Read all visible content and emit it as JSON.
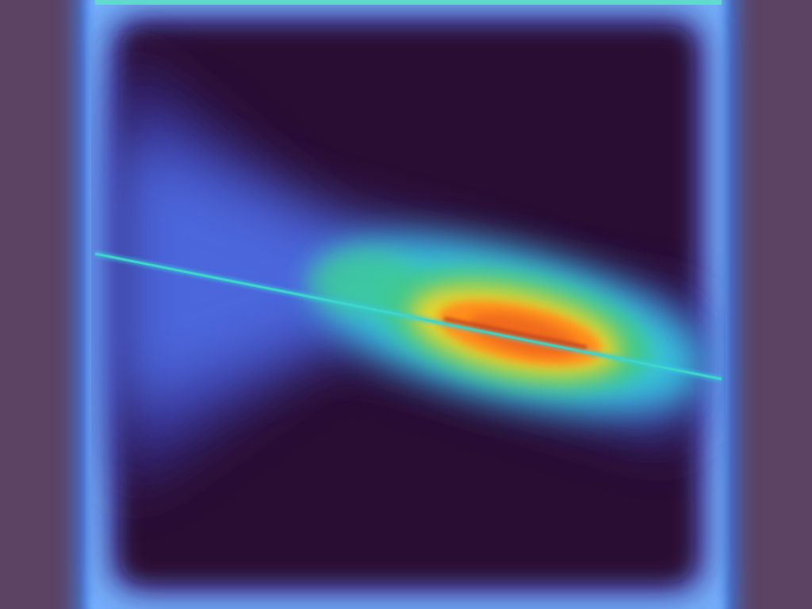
{
  "overlay": {
    "type": "attention-heatmap",
    "colormap": "turbo",
    "colors": {
      "background_panel": "#5c4263",
      "field_dark": "#290f31",
      "frame_glow": "#6aa8ff",
      "hotspot_core": "#c4441c",
      "hotspot_orange": "#ff8c1a",
      "mid_yellow": "#e9d52a",
      "mid_green": "#41c98a",
      "edge_cyan": "#35cfe0",
      "low_blue": "#4f6fe8"
    },
    "hotspot": {
      "peak_intensity": 1.0,
      "dominant_feature": "diagonal-line"
    }
  }
}
